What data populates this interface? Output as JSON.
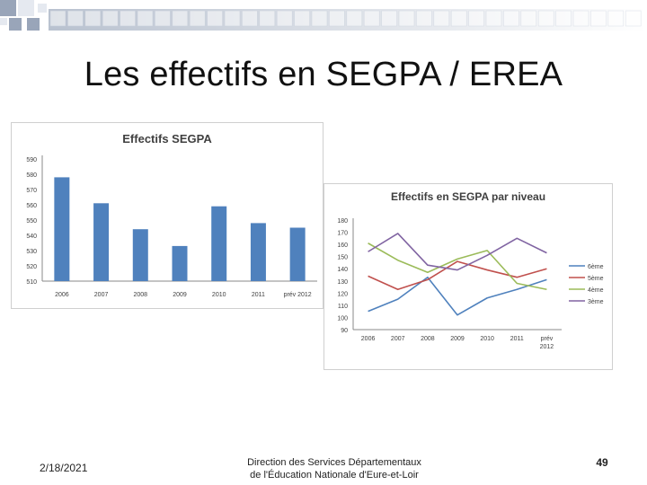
{
  "slide": {
    "title": "Les effectifs en SEGPA / EREA",
    "footer_date": "2/18/2021",
    "footer_center_line1": "Direction des Services Départementaux",
    "footer_center_line2": "de l'Éducation Nationale d'Eure-et-Loir",
    "page_number": "49"
  },
  "colors": {
    "bar": "#4f81bd",
    "band_dark": "#7f8fa8",
    "band_light": "#dfe4ec"
  },
  "chart_data": [
    {
      "type": "bar",
      "title": "Effectifs SEGPA",
      "categories": [
        "2006",
        "2007",
        "2008",
        "2009",
        "2010",
        "2011",
        "prév 2012"
      ],
      "values": [
        578,
        561,
        544,
        533,
        559,
        548,
        545
      ],
      "ylim": [
        510,
        590
      ],
      "yticks": [
        510,
        520,
        530,
        540,
        550,
        560,
        570,
        580,
        590
      ],
      "grid": false
    },
    {
      "type": "line",
      "title": "Effectifs en SEGPA par niveau",
      "categories": [
        "2006",
        "2007",
        "2008",
        "2009",
        "2010",
        "2011",
        "prév 2012"
      ],
      "ylim": [
        90,
        180
      ],
      "yticks": [
        90,
        100,
        110,
        120,
        130,
        140,
        150,
        160,
        170,
        180
      ],
      "legend_position": "right",
      "series": [
        {
          "name": "6ème",
          "color": "#4f81bd",
          "values": [
            105,
            115,
            133,
            102,
            116,
            123,
            131
          ]
        },
        {
          "name": "5ème",
          "color": "#c0504d",
          "values": [
            134,
            123,
            131,
            146,
            139,
            133,
            140
          ]
        },
        {
          "name": "4ème",
          "color": "#9bbb59",
          "values": [
            161,
            147,
            137,
            148,
            155,
            128,
            123
          ]
        },
        {
          "name": "3ème",
          "color": "#8064a2",
          "values": [
            154,
            169,
            143,
            139,
            151,
            165,
            153
          ]
        }
      ]
    }
  ]
}
